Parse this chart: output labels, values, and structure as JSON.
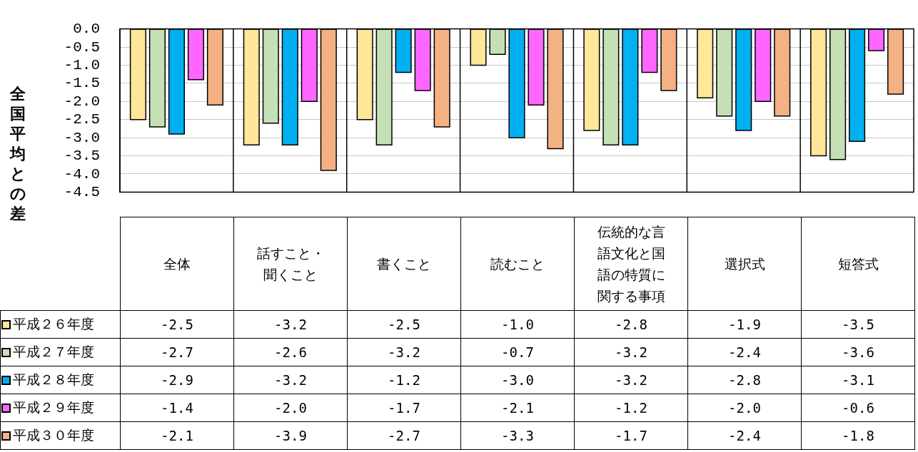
{
  "chart_data": {
    "type": "bar",
    "ylabel": "全国平均との差",
    "categories": [
      "全体",
      "話すこと・聞くこと",
      "書くこと",
      "読むこと",
      "伝統的な言語文化と国語の特質に関する事項",
      "選択式",
      "短答式"
    ],
    "series": [
      {
        "name": "平成２６年度",
        "color": "#ffe699",
        "values": [
          -2.5,
          -3.2,
          -2.5,
          -1.0,
          -2.8,
          -1.9,
          -3.5
        ],
        "value_labels": [
          "-2.5",
          "-3.2",
          "-2.5",
          "-1.0",
          "-2.8",
          "-1.9",
          "-3.5"
        ]
      },
      {
        "name": "平成２７年度",
        "color": "#c5e0b4",
        "values": [
          -2.7,
          -2.6,
          -3.2,
          -0.7,
          -3.2,
          -2.4,
          -3.6
        ],
        "value_labels": [
          "-2.7",
          "-2.6",
          "-3.2",
          "-0.7",
          "-3.2",
          "-2.4",
          "-3.6"
        ]
      },
      {
        "name": "平成２８年度",
        "color": "#00b0f0",
        "values": [
          -2.9,
          -3.2,
          -1.2,
          -3.0,
          -3.2,
          -2.8,
          -3.1
        ],
        "value_labels": [
          "-2.9",
          "-3.2",
          "-1.2",
          "-3.0",
          "-3.2",
          "-2.8",
          "-3.1"
        ]
      },
      {
        "name": "平成２９年度",
        "color": "#ff66ff",
        "values": [
          -1.4,
          -2.0,
          -1.7,
          -2.1,
          -1.2,
          -2.0,
          -0.6
        ],
        "value_labels": [
          "-1.4",
          "-2.0",
          "-1.7",
          "-2.1",
          "-1.2",
          "-2.0",
          "-0.6"
        ]
      },
      {
        "name": "平成３０年度",
        "color": "#f4b183",
        "values": [
          -2.1,
          -3.9,
          -2.7,
          -3.3,
          -1.7,
          -2.4,
          -1.8
        ],
        "value_labels": [
          "-2.1",
          "-3.9",
          "-2.7",
          "-3.3",
          "-1.7",
          "-2.4",
          "-1.8"
        ]
      }
    ],
    "ylim": [
      -4.5,
      0
    ],
    "yticks": [
      {
        "value": 0,
        "label": "0.0"
      },
      {
        "value": -0.5,
        "label": "-0.5"
      },
      {
        "value": -1,
        "label": "-1.0"
      },
      {
        "value": -1.5,
        "label": "-1.5"
      },
      {
        "value": -2,
        "label": "-2.0"
      },
      {
        "value": -2.5,
        "label": "-2.5"
      },
      {
        "value": -3,
        "label": "-3.0"
      },
      {
        "value": -3.5,
        "label": "-3.5"
      },
      {
        "value": -4,
        "label": "-4.0"
      },
      {
        "value": -4.5,
        "label": "-4.5"
      }
    ],
    "grid": "y",
    "legend": "bottom left"
  }
}
